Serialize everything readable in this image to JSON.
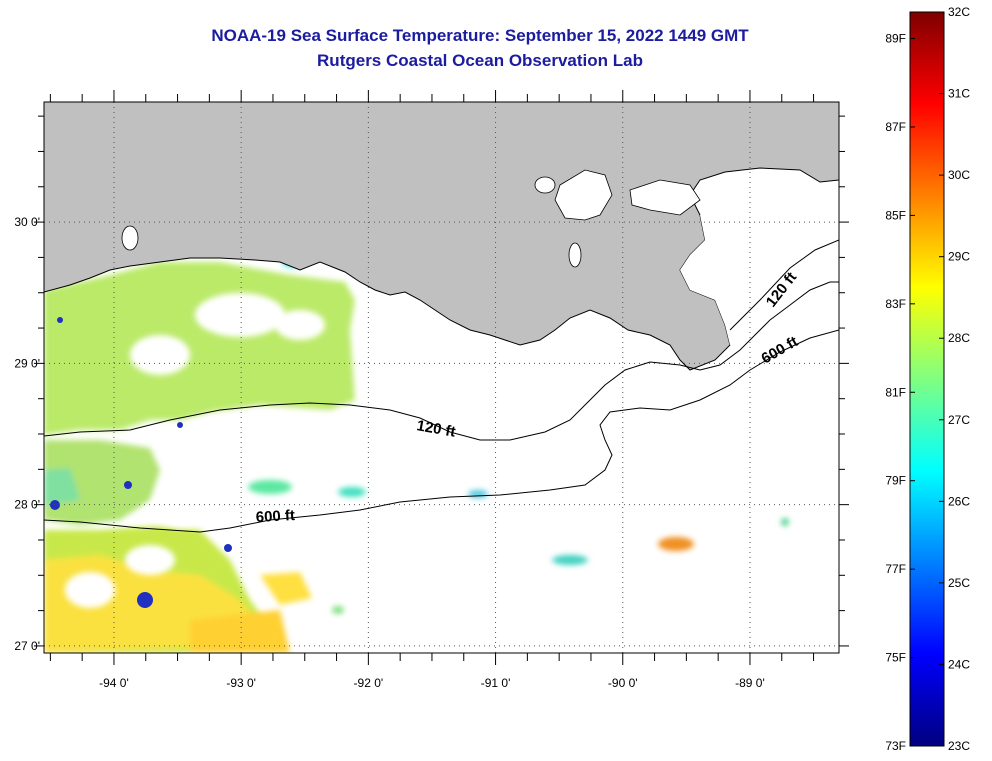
{
  "header": {
    "title": "NOAA-19 Sea Surface Temperature:  September 15, 2022 1449 GMT",
    "subtitle": "Rutgers Coastal Ocean Observation Lab"
  },
  "map": {
    "lon_range": [
      -94.55,
      -88.3
    ],
    "lat_range": [
      26.95,
      30.85
    ],
    "lon_ticks": [
      {
        "value": -94,
        "label": "-94 0'"
      },
      {
        "value": -93,
        "label": "-93 0'"
      },
      {
        "value": -92,
        "label": "-92 0'"
      },
      {
        "value": -91,
        "label": "-91 0'"
      },
      {
        "value": -90,
        "label": "-90 0'"
      },
      {
        "value": -89,
        "label": "-89 0'"
      }
    ],
    "lat_ticks": [
      {
        "value": 27,
        "label": "27 0'"
      },
      {
        "value": 28,
        "label": "28 0'"
      },
      {
        "value": 29,
        "label": "29 0'"
      },
      {
        "value": 30,
        "label": "30 0'"
      }
    ],
    "contours": [
      {
        "label": "120 ft"
      },
      {
        "label": "600 ft"
      },
      {
        "label": "120 ft"
      },
      {
        "label": "600 ft"
      }
    ],
    "colors": {
      "land": "#c0c0c0",
      "ocean_cloud": "#ffffff",
      "grid": "#555555"
    }
  },
  "colorbar": {
    "f_labels": [
      {
        "value": 89,
        "label": "89F"
      },
      {
        "value": 87,
        "label": "87F"
      },
      {
        "value": 85,
        "label": "85F"
      },
      {
        "value": 83,
        "label": "83F"
      },
      {
        "value": 81,
        "label": "81F"
      },
      {
        "value": 79,
        "label": "79F"
      },
      {
        "value": 77,
        "label": "77F"
      },
      {
        "value": 75,
        "label": "75F"
      },
      {
        "value": 73,
        "label": "73F"
      }
    ],
    "c_labels": [
      {
        "value": 32,
        "label": "32C"
      },
      {
        "value": 31,
        "label": "31C"
      },
      {
        "value": 30,
        "label": "30C"
      },
      {
        "value": 29,
        "label": "29C"
      },
      {
        "value": 28,
        "label": "28C"
      },
      {
        "value": 27,
        "label": "27C"
      },
      {
        "value": 26,
        "label": "26C"
      },
      {
        "value": 25,
        "label": "25C"
      },
      {
        "value": 24,
        "label": "24C"
      },
      {
        "value": 23,
        "label": "23C"
      }
    ],
    "stops": [
      "#00007f",
      "#0000ff",
      "#0080ff",
      "#00ffff",
      "#80ff80",
      "#ffff00",
      "#ff8000",
      "#ff0000",
      "#7f0000"
    ]
  }
}
